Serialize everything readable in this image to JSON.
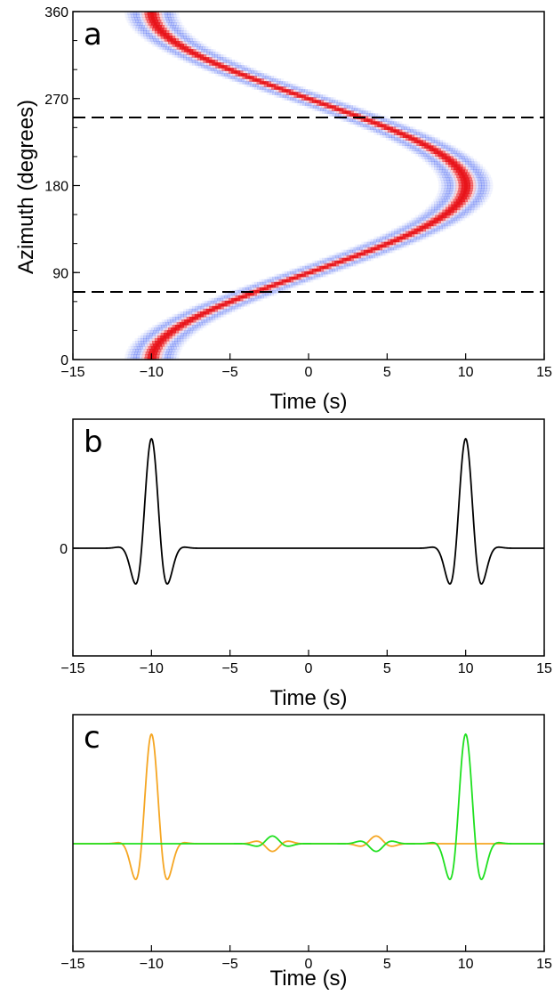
{
  "chart_data": [
    {
      "panel": "a",
      "type": "heatmap",
      "xlabel": "Time (s)",
      "ylabel": "Azimuth (degrees)",
      "xlim": [
        -15,
        15
      ],
      "ylim": [
        0,
        360
      ],
      "xticks": [
        -15,
        -10,
        -5,
        0,
        5,
        10,
        15
      ],
      "xtick_labels": [
        "−15",
        "−10",
        "−5",
        "0",
        "5",
        "10",
        "15"
      ],
      "yticks": [
        0,
        90,
        180,
        270,
        360
      ],
      "ytick_labels": [
        "0",
        "90",
        "180",
        "270",
        "360"
      ],
      "arrival_curve": {
        "center_time": 0,
        "amplitude": 10,
        "azimuth_of_max": 180
      },
      "colors": {
        "positive": "#e8141a",
        "negative": "#2b4cf0"
      },
      "dashed_lines_azimuth": [
        70,
        250
      ]
    },
    {
      "panel": "b",
      "type": "line",
      "xlabel": "Time (s)",
      "xlim": [
        -15,
        15
      ],
      "xticks": [
        -15,
        -10,
        -5,
        0,
        5,
        10,
        15
      ],
      "xtick_labels": [
        "−15",
        "−10",
        "−5",
        "0",
        "5",
        "10",
        "15"
      ],
      "ytick_labels": [
        "0"
      ],
      "series": [
        {
          "color": "#000000",
          "pulses": [
            {
              "t": -10,
              "amp": 1
            },
            {
              "t": 10,
              "amp": 1
            }
          ]
        }
      ]
    },
    {
      "panel": "c",
      "type": "line",
      "xlabel": "Time (s)",
      "xlim": [
        -15,
        15
      ],
      "xticks": [
        -15,
        -10,
        -5,
        0,
        5,
        10,
        15
      ],
      "xtick_labels": [
        "−15",
        "−10",
        "−5",
        "0",
        "5",
        "10",
        "15"
      ],
      "series": [
        {
          "color": "#f5a623",
          "pulses": [
            {
              "t": -10,
              "amp": 1
            },
            {
              "t": -2.3,
              "amp": -0.07
            },
            {
              "t": 4.3,
              "amp": 0.07
            }
          ]
        },
        {
          "color": "#1fe01f",
          "pulses": [
            {
              "t": 10,
              "amp": 1
            },
            {
              "t": -2.3,
              "amp": 0.07
            },
            {
              "t": 4.3,
              "amp": -0.07
            }
          ]
        }
      ]
    }
  ]
}
